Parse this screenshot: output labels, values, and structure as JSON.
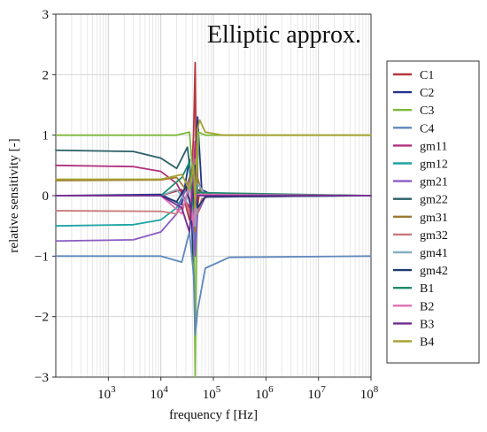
{
  "chart_data": {
    "type": "line",
    "title": "Elliptic approx.",
    "xlabel": "frequency f [Hz]",
    "ylabel": "relative sensitivity [-]",
    "xscale": "log",
    "xlim": [
      100,
      100000000
    ],
    "ylim": [
      -3,
      3
    ],
    "grid": true,
    "legend_position": "right",
    "x_ticks": [
      {
        "value": 1000,
        "base": "10",
        "exp": "3"
      },
      {
        "value": 10000,
        "base": "10",
        "exp": "4"
      },
      {
        "value": 100000,
        "base": "10",
        "exp": "5"
      },
      {
        "value": 1000000,
        "base": "10",
        "exp": "6"
      },
      {
        "value": 10000000,
        "base": "10",
        "exp": "7"
      },
      {
        "value": 100000000,
        "base": "10",
        "exp": "8"
      }
    ],
    "y_ticks": [
      {
        "value": 3,
        "label": "3"
      },
      {
        "value": 2,
        "label": "2"
      },
      {
        "value": 1,
        "label": "1"
      },
      {
        "value": 0,
        "label": "0"
      },
      {
        "value": -1,
        "label": "−1"
      },
      {
        "value": -2,
        "label": "−2"
      },
      {
        "value": -3,
        "label": "−3"
      }
    ],
    "series": [
      {
        "name": "C1",
        "color": "#b5373f",
        "values": [
          [
            100,
            0
          ],
          [
            10000,
            0
          ],
          [
            25000,
            0.1
          ],
          [
            35000,
            -0.4
          ],
          [
            42000,
            1.0
          ],
          [
            45000,
            2.2
          ],
          [
            48000,
            -0.3
          ],
          [
            55000,
            0.1
          ],
          [
            100000,
            0
          ],
          [
            100000000,
            0
          ]
        ]
      },
      {
        "name": "C2",
        "color": "#23338c",
        "values": [
          [
            100,
            0
          ],
          [
            10000,
            0.02
          ],
          [
            25000,
            -0.15
          ],
          [
            35000,
            0.6
          ],
          [
            42000,
            -1.3
          ],
          [
            45000,
            0.4
          ],
          [
            50000,
            1.3
          ],
          [
            60000,
            0.1
          ],
          [
            100000,
            0
          ],
          [
            100000000,
            0
          ]
        ]
      },
      {
        "name": "C3",
        "color": "#7cb83a",
        "values": [
          [
            100,
            1
          ],
          [
            20000,
            1
          ],
          [
            35000,
            1.05
          ],
          [
            42000,
            0.2
          ],
          [
            45000,
            -3.0
          ],
          [
            48000,
            -0.4
          ],
          [
            52000,
            1.05
          ],
          [
            70000,
            1
          ],
          [
            100000000,
            1
          ]
        ]
      },
      {
        "name": "C4",
        "color": "#5e88bc",
        "values": [
          [
            100,
            -1
          ],
          [
            10000,
            -1
          ],
          [
            25000,
            -1.1
          ],
          [
            35000,
            -0.6
          ],
          [
            42000,
            -1.3
          ],
          [
            45000,
            -2.3
          ],
          [
            50000,
            -1.9
          ],
          [
            70000,
            -1.2
          ],
          [
            200000,
            -1.02
          ],
          [
            100000000,
            -1
          ]
        ]
      },
      {
        "name": "gm11",
        "color": "#b0307e",
        "values": [
          [
            100,
            0.5
          ],
          [
            3000,
            0.48
          ],
          [
            10000,
            0.4
          ],
          [
            20000,
            0.2
          ],
          [
            35000,
            -0.2
          ],
          [
            42000,
            0.4
          ],
          [
            45000,
            0.9
          ],
          [
            50000,
            0.2
          ],
          [
            70000,
            0.02
          ],
          [
            100000000,
            0
          ]
        ]
      },
      {
        "name": "gm12",
        "color": "#1ea3a3",
        "values": [
          [
            100,
            -0.5
          ],
          [
            3000,
            -0.48
          ],
          [
            10000,
            -0.4
          ],
          [
            20000,
            -0.2
          ],
          [
            35000,
            0.2
          ],
          [
            42000,
            -0.3
          ],
          [
            45000,
            -0.8
          ],
          [
            50000,
            -0.2
          ],
          [
            70000,
            -0.02
          ],
          [
            100000000,
            0
          ]
        ]
      },
      {
        "name": "gm21",
        "color": "#8a5cc4",
        "values": [
          [
            100,
            -0.75
          ],
          [
            3000,
            -0.73
          ],
          [
            10000,
            -0.6
          ],
          [
            20000,
            -0.3
          ],
          [
            35000,
            0.3
          ],
          [
            42000,
            -0.5
          ],
          [
            45000,
            -1.0
          ],
          [
            50000,
            -0.3
          ],
          [
            70000,
            -0.02
          ],
          [
            100000000,
            0
          ]
        ]
      },
      {
        "name": "gm22",
        "color": "#2b5f68",
        "values": [
          [
            100,
            0.75
          ],
          [
            3000,
            0.73
          ],
          [
            10000,
            0.62
          ],
          [
            20000,
            0.45
          ],
          [
            32000,
            0.8
          ],
          [
            40000,
            0.1
          ],
          [
            45000,
            0.5
          ],
          [
            50000,
            0.1
          ],
          [
            70000,
            0.01
          ],
          [
            100000000,
            0
          ]
        ]
      },
      {
        "name": "gm31",
        "color": "#9c7a33",
        "values": [
          [
            100,
            0.25
          ],
          [
            10000,
            0.26
          ],
          [
            20000,
            0.3
          ],
          [
            30000,
            0.1
          ],
          [
            38000,
            0.4
          ],
          [
            45000,
            -0.6
          ],
          [
            50000,
            0.3
          ],
          [
            60000,
            0.05
          ],
          [
            100000,
            0
          ],
          [
            100000000,
            0
          ]
        ]
      },
      {
        "name": "gm32",
        "color": "#c77a7a",
        "values": [
          [
            100,
            -0.25
          ],
          [
            10000,
            -0.26
          ],
          [
            20000,
            -0.3
          ],
          [
            30000,
            -0.1
          ],
          [
            38000,
            -0.4
          ],
          [
            45000,
            0.6
          ],
          [
            50000,
            -0.3
          ],
          [
            60000,
            -0.05
          ],
          [
            100000,
            0
          ],
          [
            100000000,
            0
          ]
        ]
      },
      {
        "name": "gm41",
        "color": "#86aec0",
        "values": [
          [
            100,
            0
          ],
          [
            10000,
            0
          ],
          [
            20000,
            0.1
          ],
          [
            30000,
            -0.1
          ],
          [
            40000,
            0.3
          ],
          [
            45000,
            -0.5
          ],
          [
            50000,
            0.2
          ],
          [
            70000,
            0.02
          ],
          [
            100000000,
            0
          ]
        ]
      },
      {
        "name": "gm42",
        "color": "#1f3a70",
        "values": [
          [
            100,
            0
          ],
          [
            10000,
            0
          ],
          [
            20000,
            -0.1
          ],
          [
            30000,
            0.15
          ],
          [
            40000,
            -0.3
          ],
          [
            45000,
            0.5
          ],
          [
            50000,
            -0.2
          ],
          [
            70000,
            -0.02
          ],
          [
            100000000,
            0
          ]
        ]
      },
      {
        "name": "B1",
        "color": "#1d8a6b",
        "values": [
          [
            100,
            0
          ],
          [
            10000,
            0
          ],
          [
            25000,
            0.3
          ],
          [
            35000,
            0.55
          ],
          [
            42000,
            -0.4
          ],
          [
            45000,
            0.2
          ],
          [
            50000,
            0.05
          ],
          [
            100000000,
            0
          ]
        ]
      },
      {
        "name": "B2",
        "color": "#e06fb5",
        "values": [
          [
            100,
            0
          ],
          [
            10000,
            0
          ],
          [
            25000,
            -0.3
          ],
          [
            35000,
            0.2
          ],
          [
            42000,
            -0.5
          ],
          [
            45000,
            -0.1
          ],
          [
            50000,
            0.02
          ],
          [
            100000000,
            0
          ]
        ]
      },
      {
        "name": "B3",
        "color": "#6e2d8f",
        "values": [
          [
            100,
            0
          ],
          [
            10000,
            0
          ],
          [
            25000,
            -0.2
          ],
          [
            35000,
            -0.6
          ],
          [
            42000,
            0.3
          ],
          [
            45000,
            -0.2
          ],
          [
            50000,
            0
          ],
          [
            100000000,
            0
          ]
        ]
      },
      {
        "name": "B4",
        "color": "#a8a234",
        "values": [
          [
            100,
            0.27
          ],
          [
            10000,
            0.27
          ],
          [
            25000,
            0.35
          ],
          [
            35000,
            0.1
          ],
          [
            42000,
            0.5
          ],
          [
            45000,
            -0.2
          ],
          [
            50000,
            1.1
          ],
          [
            55000,
            1.25
          ],
          [
            70000,
            1.05
          ],
          [
            150000,
            1
          ],
          [
            100000000,
            1
          ]
        ]
      }
    ]
  }
}
